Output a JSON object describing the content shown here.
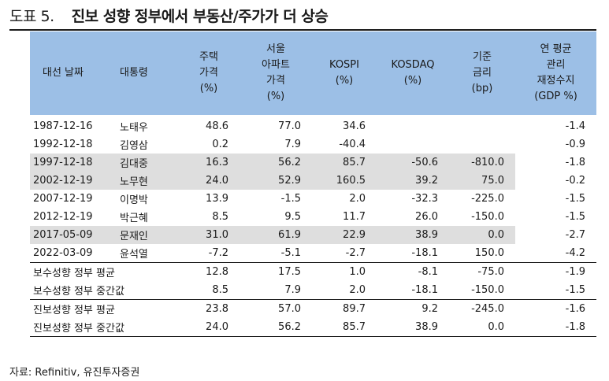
{
  "title": {
    "label": "도표 5.",
    "text": "진보 성향 정부에서 부동산/주가가 더 상승"
  },
  "headers": {
    "date": "대선 날짜",
    "president": "대통령",
    "housing": [
      "주택",
      "가격",
      "(%)"
    ],
    "apartment": [
      "서울",
      "아파트",
      "가격",
      "(%)"
    ],
    "kospi": [
      "KOSPI",
      "(%)"
    ],
    "kosdaq": [
      "KOSDAQ",
      "(%)"
    ],
    "rate": [
      "기준",
      "금리",
      "(bp)"
    ],
    "fiscal": [
      "연 평균",
      "관리",
      "재정수지",
      "(GDP %)"
    ]
  },
  "rows": [
    {
      "date": "1987-12-16",
      "president": "노태우",
      "housing": "48.6",
      "apt": "77.0",
      "kospi": "34.6",
      "kosdaq": "",
      "rate": "",
      "fiscal": "-1.4"
    },
    {
      "date": "1992-12-18",
      "president": "김영삼",
      "housing": "0.2",
      "apt": "7.9",
      "kospi": "-40.4",
      "kosdaq": "",
      "rate": "",
      "fiscal": "-0.9"
    },
    {
      "date": "1997-12-18",
      "president": "김대중",
      "housing": "16.3",
      "apt": "56.2",
      "kospi": "85.7",
      "kosdaq": "-50.6",
      "rate": "-810.0",
      "fiscal": "-1.8"
    },
    {
      "date": "2002-12-19",
      "president": "노무현",
      "housing": "24.0",
      "apt": "52.9",
      "kospi": "160.5",
      "kosdaq": "39.2",
      "rate": "75.0",
      "fiscal": "-0.2"
    },
    {
      "date": "2007-12-19",
      "president": "이명박",
      "housing": "13.9",
      "apt": "-1.5",
      "kospi": "2.0",
      "kosdaq": "-32.3",
      "rate": "-225.0",
      "fiscal": "-1.5"
    },
    {
      "date": "2012-12-19",
      "president": "박근혜",
      "housing": "8.5",
      "apt": "9.5",
      "kospi": "11.7",
      "kosdaq": "26.0",
      "rate": "-150.0",
      "fiscal": "-1.5"
    },
    {
      "date": "2017-05-09",
      "president": "문재인",
      "housing": "31.0",
      "apt": "61.9",
      "kospi": "22.9",
      "kosdaq": "38.9",
      "rate": "0.0",
      "fiscal": "-2.7"
    },
    {
      "date": "2022-03-09",
      "president": "윤석열",
      "housing": "-7.2",
      "apt": "-5.1",
      "kospi": "-2.7",
      "kosdaq": "-18.1",
      "rate": "150.0",
      "fiscal": "-4.2"
    }
  ],
  "summary": [
    {
      "label": "보수성향 정부 평균",
      "housing": "12.8",
      "apt": "17.5",
      "kospi": "1.0",
      "kosdaq": "-8.1",
      "rate": "-75.0",
      "fiscal": "-1.9"
    },
    {
      "label": "보수성향 정부 중간값",
      "housing": "8.5",
      "apt": "7.9",
      "kospi": "2.0",
      "kosdaq": "-18.1",
      "rate": "-150.0",
      "fiscal": "-1.5"
    },
    {
      "label": "진보성향 정부 평균",
      "housing": "23.8",
      "apt": "57.0",
      "kospi": "89.7",
      "kosdaq": "9.2",
      "rate": "-245.0",
      "fiscal": "-1.6"
    },
    {
      "label": "진보성향 정부 중간값",
      "housing": "24.0",
      "apt": "56.2",
      "kospi": "85.7",
      "kosdaq": "38.9",
      "rate": "0.0",
      "fiscal": "-1.8"
    }
  ],
  "source": "자료: Refinitiv, 유진투자증권"
}
